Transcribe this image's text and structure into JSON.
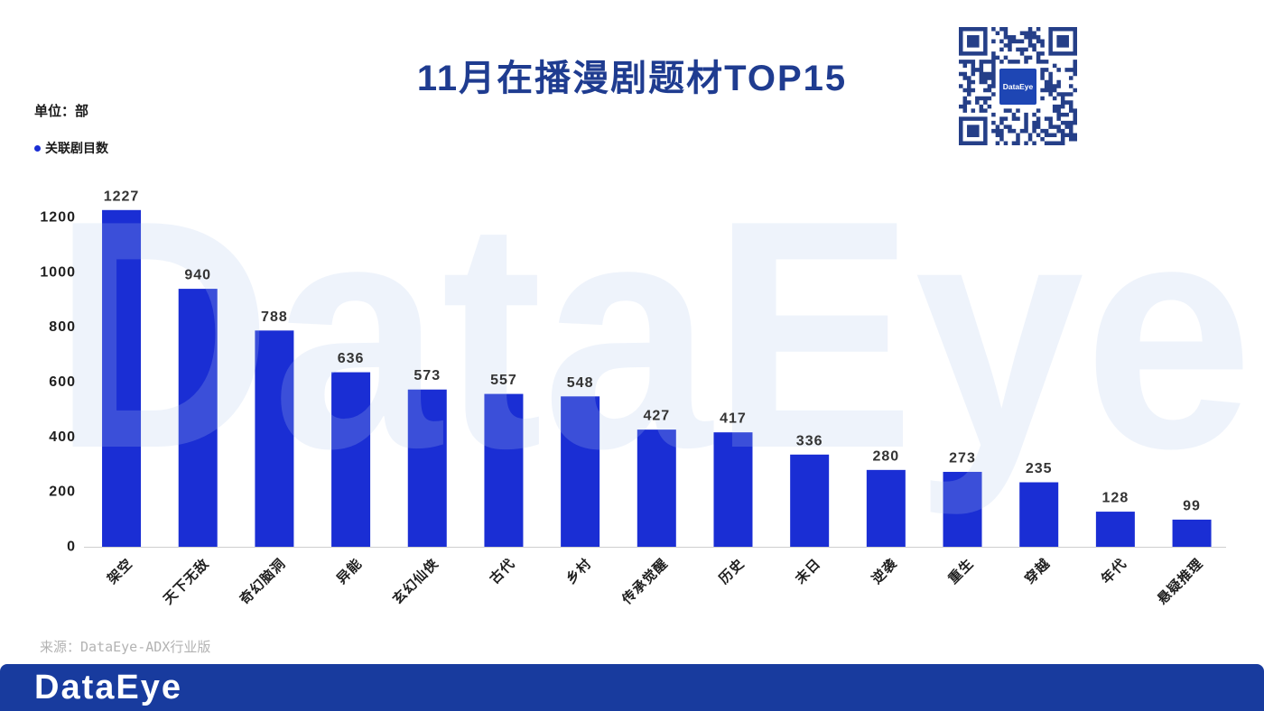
{
  "colors": {
    "title": "#1f3c90",
    "footer": "#183b9e",
    "qr": "#253f88",
    "qr_logo": "#1e46b4",
    "watermark": "#b3c9ed",
    "source_text": "#b3b3b3"
  },
  "watermark": {
    "text": "DataEye"
  },
  "qr_code": {
    "icon": "qr-code-icon",
    "logo_text": "DataEye"
  },
  "source": "来源：DataEye-ADX行业版",
  "footer": {
    "logo_text": "DataEye"
  },
  "chart_data": {
    "type": "bar",
    "title": "11月在播漫剧题材TOP15",
    "unit_label": "单位：部",
    "categories": [
      "架空",
      "天下无敌",
      "奇幻脑洞",
      "异能",
      "玄幻仙侠",
      "古代",
      "乡村",
      "传承觉醒",
      "历史",
      "末日",
      "逆袭",
      "重生",
      "穿越",
      "年代",
      "悬疑推理"
    ],
    "series": [
      {
        "name": "关联剧目数",
        "color": "#1a2ed4",
        "values": [
          1227,
          940,
          788,
          636,
          573,
          557,
          548,
          427,
          417,
          336,
          280,
          273,
          235,
          128,
          99
        ]
      }
    ],
    "yticks": [
      0,
      200,
      400,
      600,
      800,
      1000,
      1200
    ],
    "ylim": [
      0,
      1250
    ],
    "grid": false,
    "data_labels": true,
    "legend_position": "top-left"
  }
}
